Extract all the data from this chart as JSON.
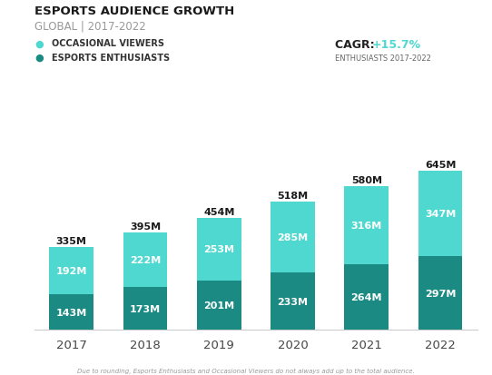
{
  "years": [
    "2017",
    "2018",
    "2019",
    "2020",
    "2021",
    "2022"
  ],
  "enthusiasts": [
    143,
    173,
    201,
    233,
    264,
    297
  ],
  "occasional": [
    192,
    222,
    253,
    285,
    316,
    347
  ],
  "totals": [
    335,
    395,
    454,
    518,
    580,
    645
  ],
  "color_enthusiasts": "#1a8a82",
  "color_occasional": "#4ed8d0",
  "title": "ESPORTS AUDIENCE GROWTH",
  "subtitle": "GLOBAL | 2017-2022",
  "legend_occasional": "OCCASIONAL VIEWERS",
  "legend_enthusiasts": "ESPORTS ENTHUSIASTS",
  "cagr_label": "CAGR: ",
  "cagr_value": "+15.7%",
  "cagr_sub": "ENTHUSIASTS 2017-2022",
  "footnote": "Due to rounding, Esports Enthusiasts and Occasional Viewers do not always add up to the total audience.",
  "bg_color": "#ffffff",
  "title_color": "#1a1a1a",
  "subtitle_color": "#999999",
  "total_label_color": "#1a1a1a",
  "inside_label_color": "#ffffff",
  "bar_width": 0.6
}
